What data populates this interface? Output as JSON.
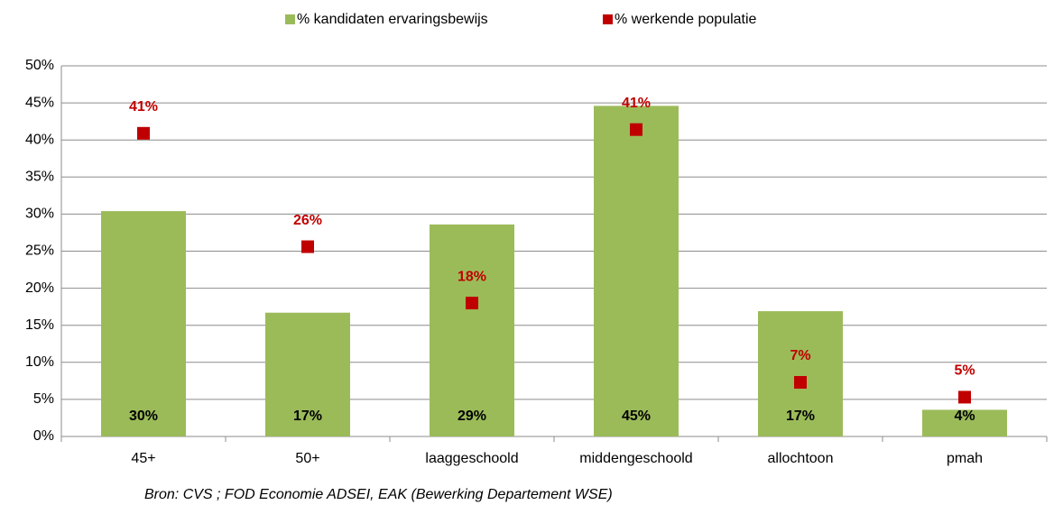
{
  "chart_data": {
    "type": "bar",
    "categories": [
      "45+",
      "50+",
      "laaggeschoold",
      "middengeschoold",
      "allochtoon",
      "pmah"
    ],
    "series": [
      {
        "name": "% kandidaten ervaringsbewijs",
        "color": "#9bbb59",
        "type": "bar",
        "values": [
          30.4,
          16.7,
          28.6,
          44.6,
          16.9,
          3.6
        ],
        "value_labels": [
          "30%",
          "17%",
          "29%",
          "45%",
          "17%",
          "4%"
        ]
      },
      {
        "name": "% werkende populatie",
        "color": "#c00000",
        "type": "scatter",
        "values": [
          40.9,
          25.6,
          18.0,
          41.4,
          7.3,
          5.3
        ],
        "value_labels": [
          "41%",
          "26%",
          "18%",
          "41%",
          "7%",
          "5%"
        ]
      }
    ],
    "ylim": [
      0,
      50
    ],
    "yticks": [
      {
        "value": 0,
        "label": "0%"
      },
      {
        "value": 5,
        "label": "5%"
      },
      {
        "value": 10,
        "label": "10%"
      },
      {
        "value": 15,
        "label": "15%"
      },
      {
        "value": 20,
        "label": "20%"
      },
      {
        "value": 25,
        "label": "25%"
      },
      {
        "value": 30,
        "label": "30%"
      },
      {
        "value": 35,
        "label": "35%"
      },
      {
        "value": 40,
        "label": "40%"
      },
      {
        "value": 45,
        "label": "45%"
      },
      {
        "value": 50,
        "label": "50%"
      }
    ],
    "grid": true,
    "legend": "top",
    "source": "Bron: CVS ; FOD Economie ADSEI, EAK (Bewerking Departement WSE)"
  }
}
